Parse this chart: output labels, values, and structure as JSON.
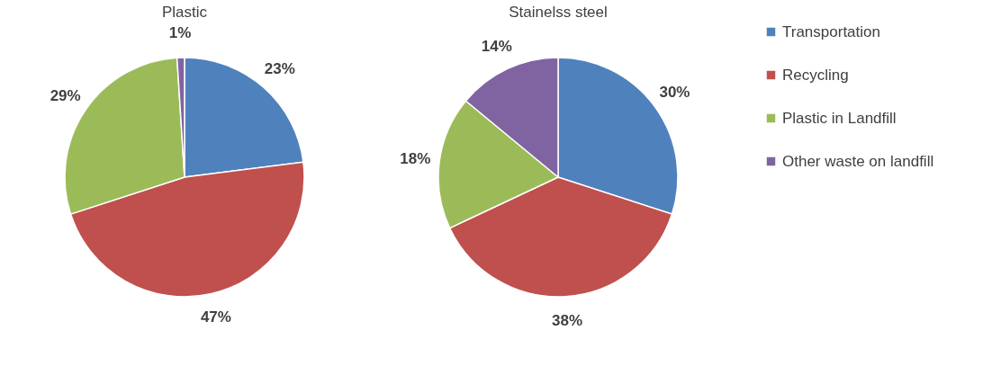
{
  "chart_data": [
    {
      "type": "pie",
      "title": "Plastic",
      "categories": [
        null,
        null,
        null,
        null
      ],
      "values": [
        23,
        47,
        29,
        1
      ],
      "colors": [
        "#4f81bd",
        "#c0504d",
        "#9bbb59",
        "#8064a2"
      ],
      "value_labels": [
        "23%",
        "47%",
        "29%",
        "1%"
      ],
      "legend": false
    },
    {
      "type": "pie",
      "title": "Stainelss steel",
      "categories": [
        "Transportation",
        "Recycling",
        "Plastic in Landfill",
        "Other waste on landfill"
      ],
      "values": [
        30,
        38,
        18,
        14
      ],
      "colors": [
        "#4f81bd",
        "#c0504d",
        "#9bbb59",
        "#8064a2"
      ],
      "value_labels": [
        "30%",
        "38%",
        "18%",
        "14%"
      ],
      "legend": "right"
    }
  ]
}
